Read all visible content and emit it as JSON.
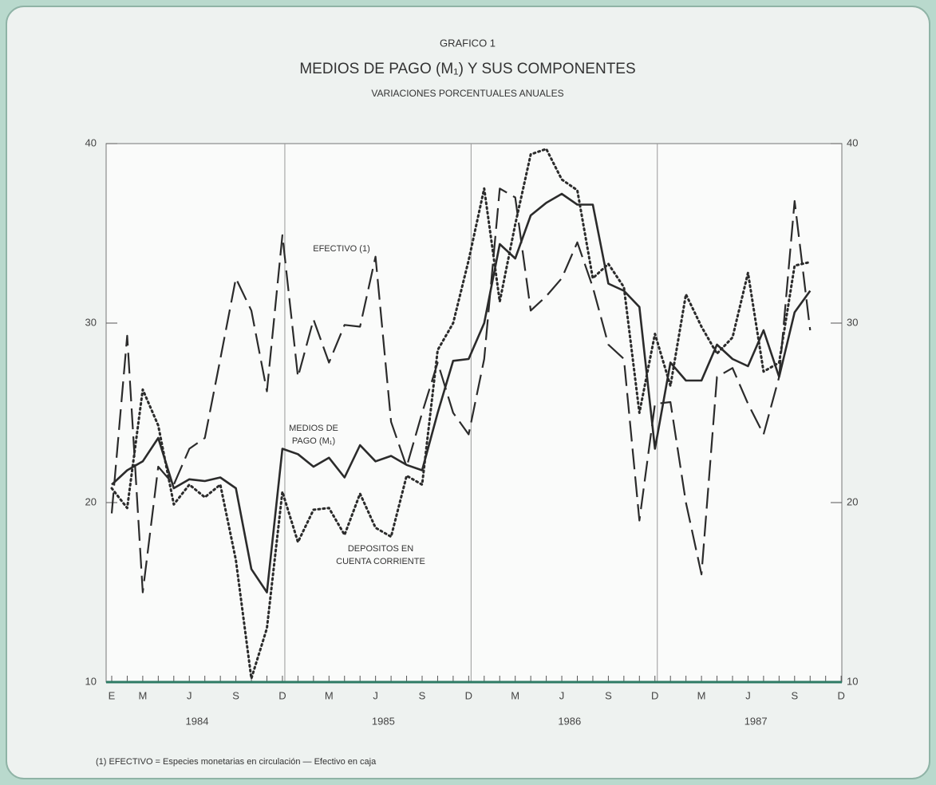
{
  "chart_data": {
    "type": "line",
    "header": "GRAFICO 1",
    "title": "MEDIOS DE PAGO (M₁) Y SUS COMPONENTES",
    "subtitle": "VARIACIONES PORCENTUALES ANUALES",
    "categories": [
      "E",
      null,
      "M",
      null,
      null,
      "J",
      null,
      null,
      "S",
      null,
      null,
      "D",
      null,
      null,
      "M",
      null,
      null,
      "J",
      null,
      null,
      "S",
      null,
      null,
      "D",
      null,
      null,
      "M",
      null,
      null,
      "J",
      null,
      null,
      "S",
      null,
      null,
      "D",
      null,
      null,
      "M",
      null,
      null,
      "J",
      null,
      null,
      "S",
      null,
      null,
      "D"
    ],
    "years": [
      "1984",
      "1985",
      "1986",
      "1987"
    ],
    "ylim": [
      10,
      40
    ],
    "yticks": [
      10,
      20,
      30,
      40
    ],
    "y2lim": [
      10,
      40
    ],
    "y2ticks": [
      10,
      20,
      30,
      40
    ],
    "series": [
      {
        "name": "MEDIOS DE PAGO (M₁)",
        "color": "#2b2b2b",
        "style": "solid",
        "values": [
          21.0,
          21.8,
          22.3,
          23.6,
          20.8,
          21.3,
          21.2,
          21.4,
          20.8,
          16.3,
          15.0,
          23.0,
          22.7,
          22.0,
          22.5,
          21.4,
          23.2,
          22.3,
          22.6,
          22.1,
          21.8,
          25.0,
          27.9,
          28.0,
          30.0,
          34.4,
          33.6,
          36.0,
          36.7,
          37.2,
          36.6,
          36.6,
          32.2,
          31.8,
          30.9,
          23.0,
          27.8,
          26.8,
          26.8,
          28.8,
          28.0,
          27.6,
          29.6,
          27.0,
          30.6,
          31.8,
          null,
          null
        ]
      },
      {
        "name": "EFECTIVO (1)",
        "color": "#2b2b2b",
        "style": "dashed",
        "values": [
          19.4,
          29.3,
          15.0,
          22.0,
          21.0,
          23.0,
          23.6,
          28.0,
          32.5,
          30.7,
          26.2,
          34.9,
          27.0,
          30.2,
          27.8,
          29.9,
          29.8,
          33.7,
          24.5,
          22.0,
          25.0,
          27.8,
          25.0,
          23.8,
          28.0,
          37.5,
          37.0,
          30.7,
          31.5,
          32.5,
          34.5,
          32.0,
          28.8,
          28.0,
          19.0,
          25.5,
          25.6,
          20.0,
          16.0,
          27.0,
          27.5,
          25.5,
          23.8,
          27.0,
          36.8,
          29.6,
          null,
          null
        ]
      },
      {
        "name": "DEPOSITOS EN CUENTA CORRIENTE",
        "color": "#2b2b2b",
        "style": "dotted",
        "values": [
          20.8,
          19.7,
          26.3,
          24.3,
          19.9,
          21.0,
          20.3,
          21.0,
          16.8,
          10.2,
          13.0,
          20.6,
          17.8,
          19.6,
          19.7,
          18.2,
          20.5,
          18.6,
          18.1,
          21.5,
          21.0,
          28.5,
          30.0,
          33.5,
          37.5,
          31.2,
          35.5,
          39.4,
          39.7,
          38.0,
          37.4,
          32.5,
          33.3,
          32.0,
          25.0,
          29.4,
          26.5,
          31.6,
          29.8,
          28.3,
          29.2,
          32.8,
          27.3,
          27.8,
          33.2,
          33.4,
          null,
          null
        ]
      }
    ],
    "annotations": [
      {
        "lines": [
          "EFECTIVO (1)"
        ]
      },
      {
        "lines": [
          "MEDIOS DE",
          "PAGO (M₁)"
        ]
      },
      {
        "lines": [
          "DEPOSITOS EN",
          "CUENTA CORRIENTE"
        ]
      }
    ],
    "footnote": "(1) EFECTIVO = Especies monetarias en circulación — Efectivo en caja"
  }
}
